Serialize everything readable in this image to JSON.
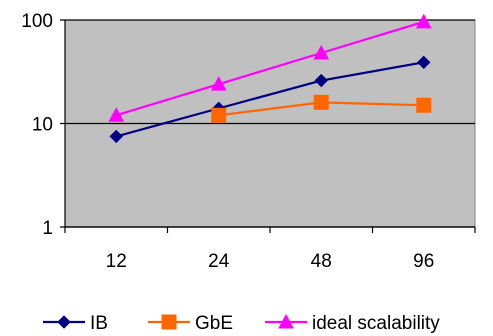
{
  "chart_data": {
    "type": "line",
    "categories": [
      "12",
      "24",
      "48",
      "96"
    ],
    "y_scale": "log",
    "ylim": [
      1,
      100
    ],
    "y_ticks": [
      1,
      10,
      100
    ],
    "y_tick_labels": [
      "1",
      "10",
      "100"
    ],
    "grid": "major horizontal gridlines",
    "legend_position": "bottom",
    "plot_background": "#c0c0c0",
    "series": [
      {
        "name": "IB",
        "color": "#000080",
        "marker": "diamond",
        "values": [
          7.5,
          14,
          26,
          39
        ]
      },
      {
        "name": "GbE",
        "color": "#ff6600",
        "marker": "square",
        "values": [
          null,
          12,
          16,
          15
        ]
      },
      {
        "name": "ideal scalability",
        "color": "#ff00ff",
        "marker": "triangle",
        "values": [
          12,
          24,
          48,
          96
        ]
      }
    ]
  }
}
